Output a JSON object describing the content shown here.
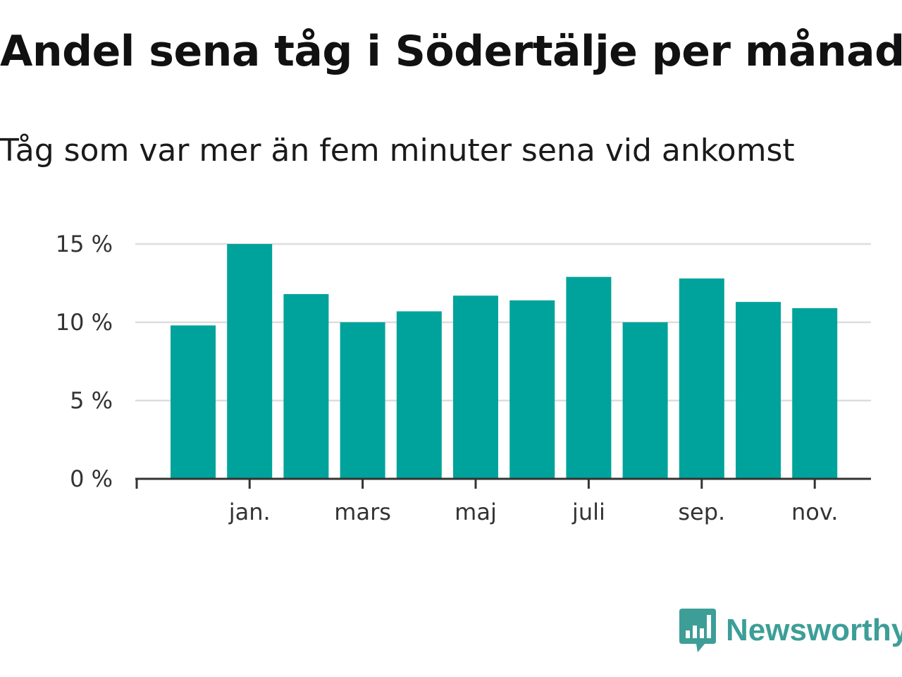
{
  "title": "Andel sena tåg i Södertälje per månad",
  "subtitle": "Tåg som var mer än fem minuter sena vid ankomst",
  "brand": {
    "name": "Newsworthy",
    "logo_icon": "bar-chart-speech-bubble-icon"
  },
  "colors": {
    "bar": "#00a39b",
    "grid": "#dddddd",
    "axis": "#333333",
    "brand": "#3d9e98"
  },
  "chart_data": {
    "type": "bar",
    "title": "Andel sena tåg i Södertälje per månad",
    "subtitle": "Tåg som var mer än fem minuter sena vid ankomst",
    "xlabel": "",
    "ylabel": "",
    "ylim": [
      0,
      15
    ],
    "y_ticks": [
      0,
      5,
      10,
      15
    ],
    "y_tick_labels": [
      "0 %",
      "5 %",
      "10 %",
      "15 %"
    ],
    "x_tick_labels": [
      "jan.",
      "mars",
      "maj",
      "juli",
      "sep.",
      "nov."
    ],
    "x_tick_positions": [
      1,
      3,
      5,
      7,
      9,
      11
    ],
    "grid": true,
    "legend": "none",
    "values": [
      9.8,
      15.0,
      11.8,
      10.0,
      10.7,
      11.7,
      11.4,
      12.9,
      10.0,
      12.8,
      11.3,
      10.9
    ]
  }
}
